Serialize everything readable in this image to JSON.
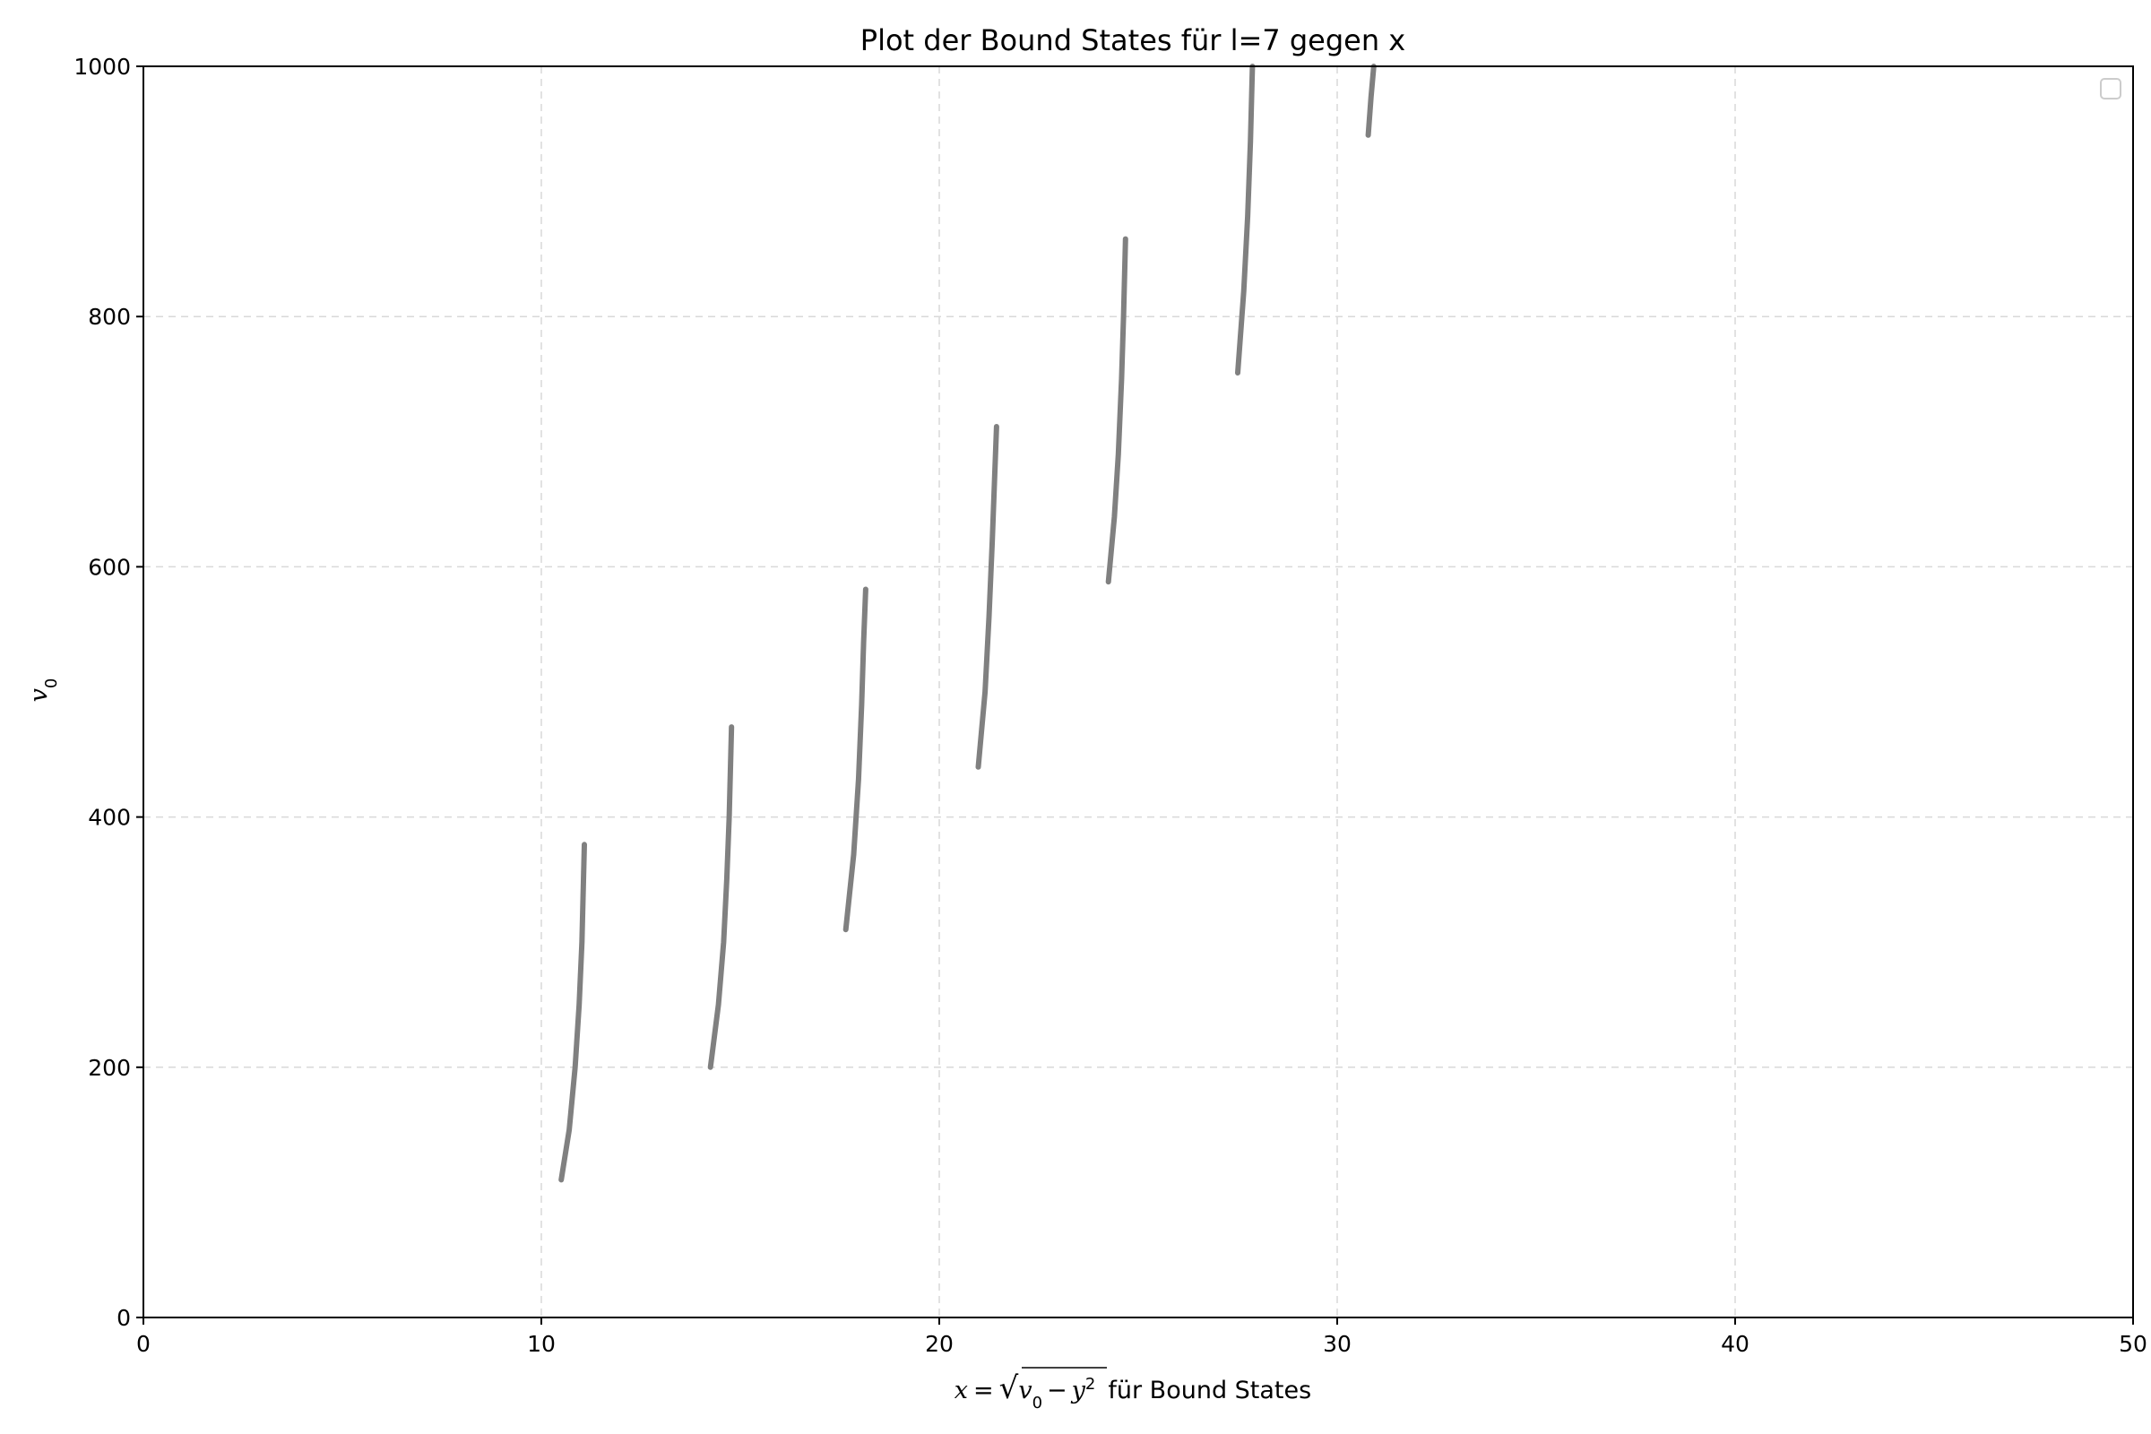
{
  "chart_data": {
    "type": "line",
    "title": "Plot der Bound States für l=7 gegen x",
    "xlabel": {
      "x_var": "x",
      "equals": "=",
      "v": "v",
      "sub0": "0",
      "minus": "−",
      "y": "y",
      "sup2": "2",
      "suffix": "für Bound States"
    },
    "ylabel": {
      "v": "v",
      "sub0": "0"
    },
    "xlim": [
      0,
      50
    ],
    "ylim": [
      0,
      1000
    ],
    "xticks": [
      0,
      10,
      20,
      30,
      40,
      50
    ],
    "yticks": [
      0,
      200,
      400,
      600,
      800,
      1000
    ],
    "grid": true,
    "legend": "top-right, empty",
    "series_color": "#808080",
    "series": [
      {
        "points": [
          [
            10.5,
            110
          ],
          [
            10.7,
            150
          ],
          [
            10.85,
            200
          ],
          [
            10.95,
            250
          ],
          [
            11.02,
            300
          ],
          [
            11.08,
            378
          ]
        ]
      },
      {
        "points": [
          [
            14.25,
            200
          ],
          [
            14.45,
            250
          ],
          [
            14.58,
            300
          ],
          [
            14.66,
            350
          ],
          [
            14.72,
            400
          ],
          [
            14.78,
            472
          ]
        ]
      },
      {
        "points": [
          [
            17.65,
            310
          ],
          [
            17.85,
            370
          ],
          [
            17.97,
            430
          ],
          [
            18.05,
            490
          ],
          [
            18.1,
            540
          ],
          [
            18.15,
            582
          ]
        ]
      },
      {
        "points": [
          [
            20.98,
            440
          ],
          [
            21.15,
            500
          ],
          [
            21.25,
            560
          ],
          [
            21.33,
            620
          ],
          [
            21.39,
            670
          ],
          [
            21.44,
            712
          ]
        ]
      },
      {
        "points": [
          [
            24.25,
            588
          ],
          [
            24.4,
            640
          ],
          [
            24.5,
            690
          ],
          [
            24.58,
            750
          ],
          [
            24.63,
            800
          ],
          [
            24.68,
            862
          ]
        ]
      },
      {
        "points": [
          [
            27.5,
            755
          ],
          [
            27.65,
            820
          ],
          [
            27.75,
            880
          ],
          [
            27.82,
            940
          ],
          [
            27.87,
            1000
          ]
        ]
      },
      {
        "points": [
          [
            30.78,
            945
          ],
          [
            30.85,
            975
          ],
          [
            30.92,
            1000
          ]
        ]
      }
    ]
  }
}
